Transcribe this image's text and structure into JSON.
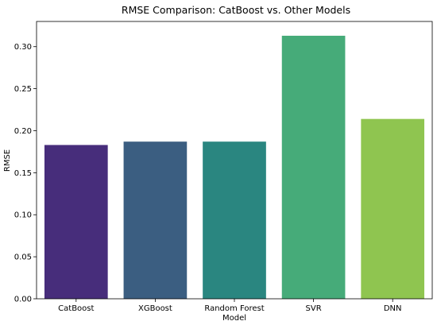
{
  "chart_data": {
    "type": "bar",
    "title": "RMSE Comparison: CatBoost vs. Other Models",
    "xlabel": "Model",
    "ylabel": "RMSE",
    "categories": [
      "CatBoost",
      "XGBoost",
      "Random Forest",
      "SVR",
      "DNN"
    ],
    "values": [
      0.183,
      0.187,
      0.187,
      0.313,
      0.214
    ],
    "colors": [
      "#472d7b",
      "#3b5e81",
      "#2a8680",
      "#46ab79",
      "#8fc550"
    ],
    "ylim": [
      0,
      0.33
    ],
    "yticks": [
      "0.00",
      "0.05",
      "0.10",
      "0.15",
      "0.20",
      "0.25",
      "0.30"
    ],
    "grid": false,
    "legend": "none"
  }
}
